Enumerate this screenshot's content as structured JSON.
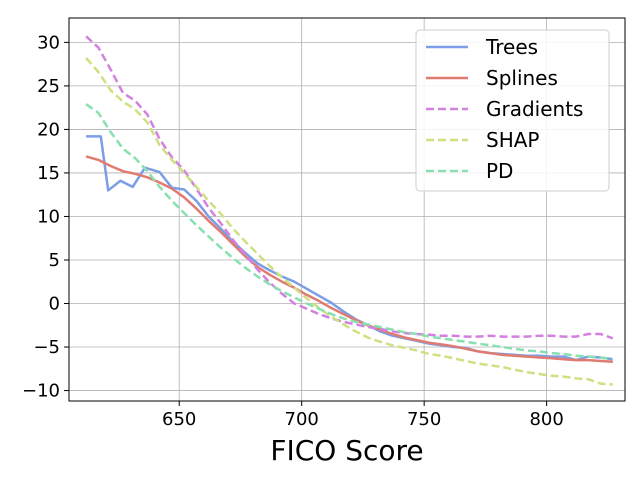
{
  "chart_data": {
    "type": "line",
    "title": "",
    "xlabel": "FICO Score",
    "ylabel": "",
    "xlim": [
      605,
      832
    ],
    "ylim": [
      -11.2,
      32.8
    ],
    "xticks": [
      650,
      700,
      750,
      800
    ],
    "yticks": [
      -10,
      -5,
      0,
      5,
      10,
      15,
      20,
      25,
      30
    ],
    "grid": true,
    "legend": "top-right",
    "series": [
      {
        "name": "Trees",
        "color": "#7b9ee6",
        "dash": "solid",
        "x": [
          612,
          618,
          621,
          626,
          631,
          636,
          642,
          647,
          652,
          657,
          662,
          667,
          672,
          677,
          682,
          687,
          692,
          697,
          702,
          707,
          712,
          717,
          722,
          727,
          732,
          737,
          742,
          747,
          752,
          757,
          762,
          767,
          772,
          777,
          782,
          787,
          792,
          797,
          802,
          807,
          812,
          817,
          822,
          827
        ],
        "y": [
          19.2,
          19.2,
          13.0,
          14.1,
          13.4,
          15.6,
          15.1,
          13.3,
          13.1,
          11.8,
          10.0,
          8.6,
          7.1,
          5.8,
          4.6,
          3.8,
          3.1,
          2.5,
          1.7,
          0.9,
          0.1,
          -0.9,
          -1.8,
          -2.5,
          -3.2,
          -3.7,
          -4.0,
          -4.3,
          -4.6,
          -4.8,
          -5.0,
          -5.1,
          -5.5,
          -5.7,
          -5.8,
          -5.9,
          -6.0,
          -6.0,
          -6.1,
          -6.1,
          -6.5,
          -6.1,
          -6.2,
          -6.4
        ]
      },
      {
        "name": "Splines",
        "color": "#e07b72",
        "dash": "solid",
        "x": [
          612,
          617,
          622,
          627,
          632,
          637,
          642,
          647,
          652,
          657,
          662,
          667,
          672,
          677,
          682,
          687,
          692,
          697,
          702,
          707,
          712,
          717,
          722,
          727,
          732,
          737,
          742,
          747,
          752,
          757,
          762,
          767,
          772,
          777,
          782,
          787,
          792,
          797,
          802,
          807,
          812,
          817,
          822,
          827
        ],
        "y": [
          16.9,
          16.5,
          15.8,
          15.2,
          14.9,
          14.5,
          13.9,
          13.2,
          12.2,
          10.9,
          9.5,
          8.2,
          6.8,
          5.4,
          4.2,
          3.3,
          2.5,
          1.8,
          1.0,
          0.3,
          -0.5,
          -1.2,
          -1.9,
          -2.5,
          -3.0,
          -3.5,
          -3.9,
          -4.2,
          -4.5,
          -4.7,
          -4.9,
          -5.2,
          -5.5,
          -5.7,
          -5.9,
          -6.0,
          -6.1,
          -6.2,
          -6.3,
          -6.4,
          -6.5,
          -6.5,
          -6.6,
          -6.7
        ]
      },
      {
        "name": "Gradients",
        "color": "#d480e0",
        "dash": "dashed",
        "x": [
          612,
          617,
          622,
          627,
          632,
          637,
          642,
          647,
          652,
          657,
          662,
          667,
          672,
          677,
          682,
          687,
          692,
          697,
          702,
          707,
          712,
          717,
          722,
          727,
          732,
          737,
          742,
          747,
          752,
          757,
          762,
          767,
          772,
          777,
          782,
          787,
          792,
          797,
          802,
          807,
          812,
          817,
          822,
          827
        ],
        "y": [
          30.7,
          29.4,
          26.9,
          24.2,
          23.3,
          21.7,
          18.9,
          16.8,
          15.3,
          13.2,
          11.0,
          9.2,
          7.3,
          5.6,
          3.9,
          2.4,
          1.1,
          0.0,
          -0.6,
          -1.2,
          -1.7,
          -2.1,
          -2.4,
          -2.7,
          -2.9,
          -3.2,
          -3.4,
          -3.5,
          -3.6,
          -3.7,
          -3.7,
          -3.8,
          -3.8,
          -3.7,
          -3.8,
          -3.8,
          -3.8,
          -3.7,
          -3.7,
          -3.8,
          -3.8,
          -3.5,
          -3.5,
          -4.0
        ]
      },
      {
        "name": "SHAP",
        "color": "#cfe080",
        "dash": "dashed",
        "x": [
          612,
          617,
          622,
          627,
          632,
          637,
          642,
          647,
          652,
          657,
          662,
          667,
          672,
          677,
          682,
          687,
          692,
          697,
          702,
          707,
          712,
          717,
          722,
          727,
          732,
          737,
          742,
          747,
          752,
          757,
          762,
          767,
          772,
          777,
          782,
          787,
          792,
          797,
          802,
          807,
          812,
          817,
          822,
          827
        ],
        "y": [
          28.2,
          26.6,
          24.5,
          23.2,
          22.3,
          20.8,
          18.2,
          16.5,
          15.0,
          13.4,
          11.8,
          10.3,
          8.6,
          7.1,
          5.7,
          4.3,
          3.0,
          1.8,
          0.6,
          -0.5,
          -1.5,
          -2.4,
          -3.2,
          -3.9,
          -4.4,
          -4.8,
          -5.1,
          -5.4,
          -5.8,
          -6.0,
          -6.3,
          -6.6,
          -6.9,
          -7.1,
          -7.3,
          -7.6,
          -7.9,
          -8.1,
          -8.3,
          -8.4,
          -8.6,
          -8.7,
          -9.2,
          -9.3
        ]
      },
      {
        "name": "PD",
        "color": "#88e0b0",
        "dash": "dashed",
        "x": [
          612,
          617,
          622,
          627,
          632,
          637,
          642,
          647,
          652,
          657,
          662,
          667,
          672,
          677,
          682,
          687,
          692,
          697,
          702,
          707,
          712,
          717,
          722,
          727,
          732,
          737,
          742,
          747,
          752,
          757,
          762,
          767,
          772,
          777,
          782,
          787,
          792,
          797,
          802,
          807,
          812,
          817,
          822,
          827
        ],
        "y": [
          22.9,
          21.9,
          19.7,
          17.8,
          16.7,
          15.2,
          13.4,
          11.8,
          10.4,
          9.0,
          7.7,
          6.4,
          5.2,
          4.1,
          3.1,
          2.2,
          1.4,
          0.7,
          0.0,
          -0.6,
          -1.2,
          -1.7,
          -2.1,
          -2.4,
          -2.7,
          -3.0,
          -3.3,
          -3.5,
          -3.8,
          -4.0,
          -4.2,
          -4.4,
          -4.6,
          -4.8,
          -5.0,
          -5.2,
          -5.4,
          -5.5,
          -5.7,
          -5.8,
          -6.0,
          -6.1,
          -6.2,
          -6.4
        ]
      }
    ]
  }
}
